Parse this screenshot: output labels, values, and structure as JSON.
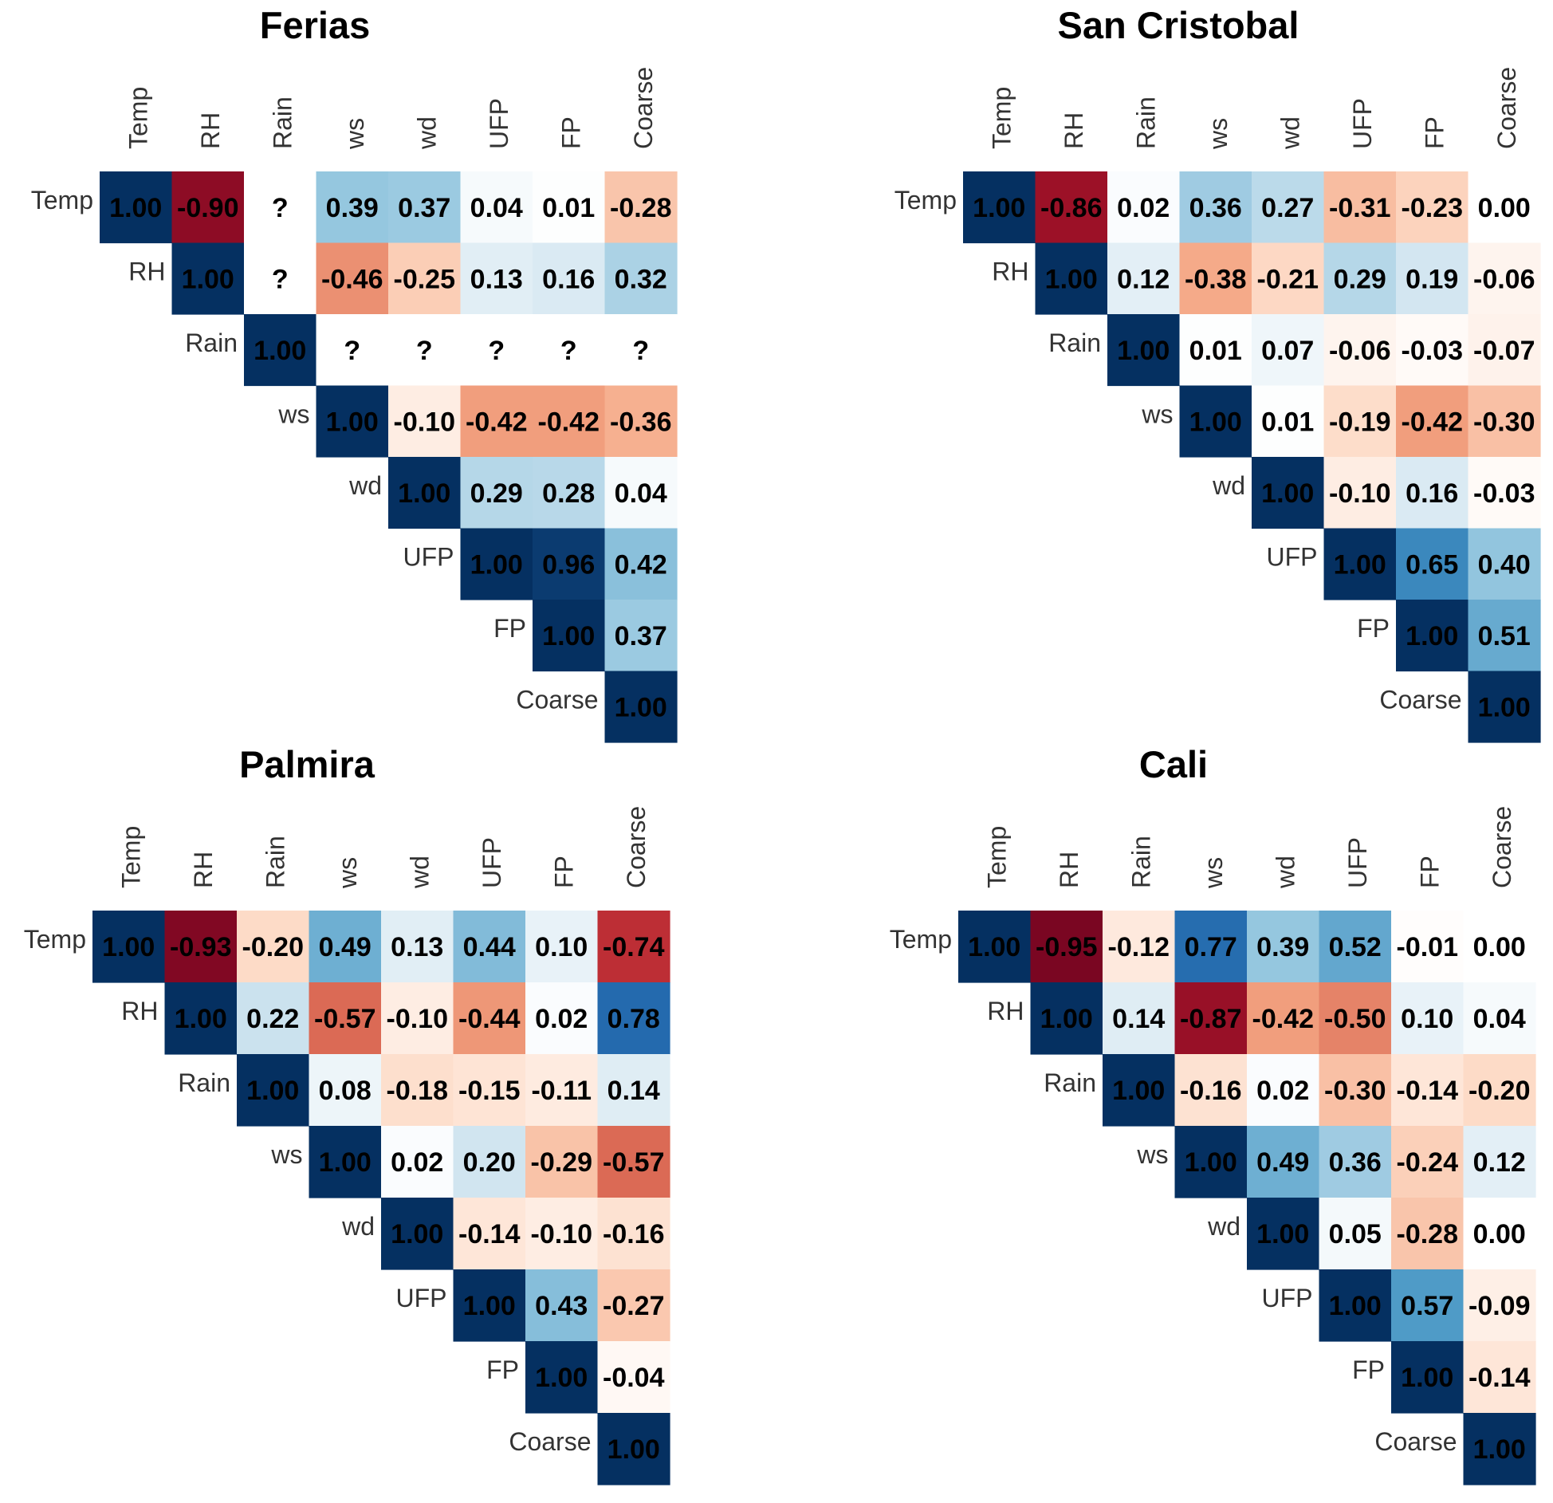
{
  "chart_data": {
    "type": "heatmap",
    "variables": [
      "Temp",
      "RH",
      "Rain",
      "ws",
      "wd",
      "UFP",
      "FP",
      "Coarse"
    ],
    "color_scale": {
      "min": -1,
      "max": 1,
      "negative_color": "#67001f",
      "neutral_color": "#ffffff",
      "positive_color": "#053061"
    },
    "missing_label": "?",
    "panels": [
      {
        "title": "Ferias",
        "matrix": [
          [
            1.0,
            -0.9,
            null,
            0.39,
            0.37,
            0.04,
            0.01,
            -0.28
          ],
          [
            null,
            1.0,
            null,
            -0.46,
            -0.25,
            0.13,
            0.16,
            0.32
          ],
          [
            null,
            null,
            1.0,
            null,
            null,
            null,
            null,
            null
          ],
          [
            null,
            null,
            null,
            1.0,
            -0.1,
            -0.42,
            -0.42,
            -0.36
          ],
          [
            null,
            null,
            null,
            null,
            1.0,
            0.29,
            0.28,
            0.04
          ],
          [
            null,
            null,
            null,
            null,
            null,
            1.0,
            0.96,
            0.42
          ],
          [
            null,
            null,
            null,
            null,
            null,
            null,
            1.0,
            0.37
          ],
          [
            null,
            null,
            null,
            null,
            null,
            null,
            null,
            1.0
          ]
        ]
      },
      {
        "title": "San Cristobal",
        "matrix": [
          [
            1.0,
            -0.86,
            0.02,
            0.36,
            0.27,
            -0.31,
            -0.23,
            0.0
          ],
          [
            null,
            1.0,
            0.12,
            -0.38,
            -0.21,
            0.29,
            0.19,
            -0.06
          ],
          [
            null,
            null,
            1.0,
            0.01,
            0.07,
            -0.06,
            -0.03,
            -0.07
          ],
          [
            null,
            null,
            null,
            1.0,
            0.01,
            -0.19,
            -0.42,
            -0.3
          ],
          [
            null,
            null,
            null,
            null,
            1.0,
            -0.1,
            0.16,
            -0.03
          ],
          [
            null,
            null,
            null,
            null,
            null,
            1.0,
            0.65,
            0.4
          ],
          [
            null,
            null,
            null,
            null,
            null,
            null,
            1.0,
            0.51
          ],
          [
            null,
            null,
            null,
            null,
            null,
            null,
            null,
            1.0
          ]
        ]
      },
      {
        "title": "Palmira",
        "matrix": [
          [
            1.0,
            -0.93,
            -0.2,
            0.49,
            0.13,
            0.44,
            0.1,
            -0.74
          ],
          [
            null,
            1.0,
            0.22,
            -0.57,
            -0.1,
            -0.44,
            0.02,
            0.78
          ],
          [
            null,
            null,
            1.0,
            0.08,
            -0.18,
            -0.15,
            -0.11,
            0.14
          ],
          [
            null,
            null,
            null,
            1.0,
            0.02,
            0.2,
            -0.29,
            -0.57
          ],
          [
            null,
            null,
            null,
            null,
            1.0,
            -0.14,
            -0.1,
            -0.16
          ],
          [
            null,
            null,
            null,
            null,
            null,
            1.0,
            0.43,
            -0.27
          ],
          [
            null,
            null,
            null,
            null,
            null,
            null,
            1.0,
            -0.04
          ],
          [
            null,
            null,
            null,
            null,
            null,
            null,
            null,
            1.0
          ]
        ]
      },
      {
        "title": "Cali",
        "matrix": [
          [
            1.0,
            -0.95,
            -0.12,
            0.77,
            0.39,
            0.52,
            -0.01,
            0.0
          ],
          [
            null,
            1.0,
            0.14,
            -0.87,
            -0.42,
            -0.5,
            0.1,
            0.04
          ],
          [
            null,
            null,
            1.0,
            -0.16,
            0.02,
            -0.3,
            -0.14,
            -0.2
          ],
          [
            null,
            null,
            null,
            1.0,
            0.49,
            0.36,
            -0.24,
            0.12
          ],
          [
            null,
            null,
            null,
            null,
            1.0,
            0.05,
            -0.28,
            0.0
          ],
          [
            null,
            null,
            null,
            null,
            null,
            1.0,
            0.57,
            -0.09
          ],
          [
            null,
            null,
            null,
            null,
            null,
            null,
            1.0,
            -0.14
          ],
          [
            null,
            null,
            null,
            null,
            null,
            null,
            null,
            1.0
          ]
        ]
      }
    ]
  }
}
